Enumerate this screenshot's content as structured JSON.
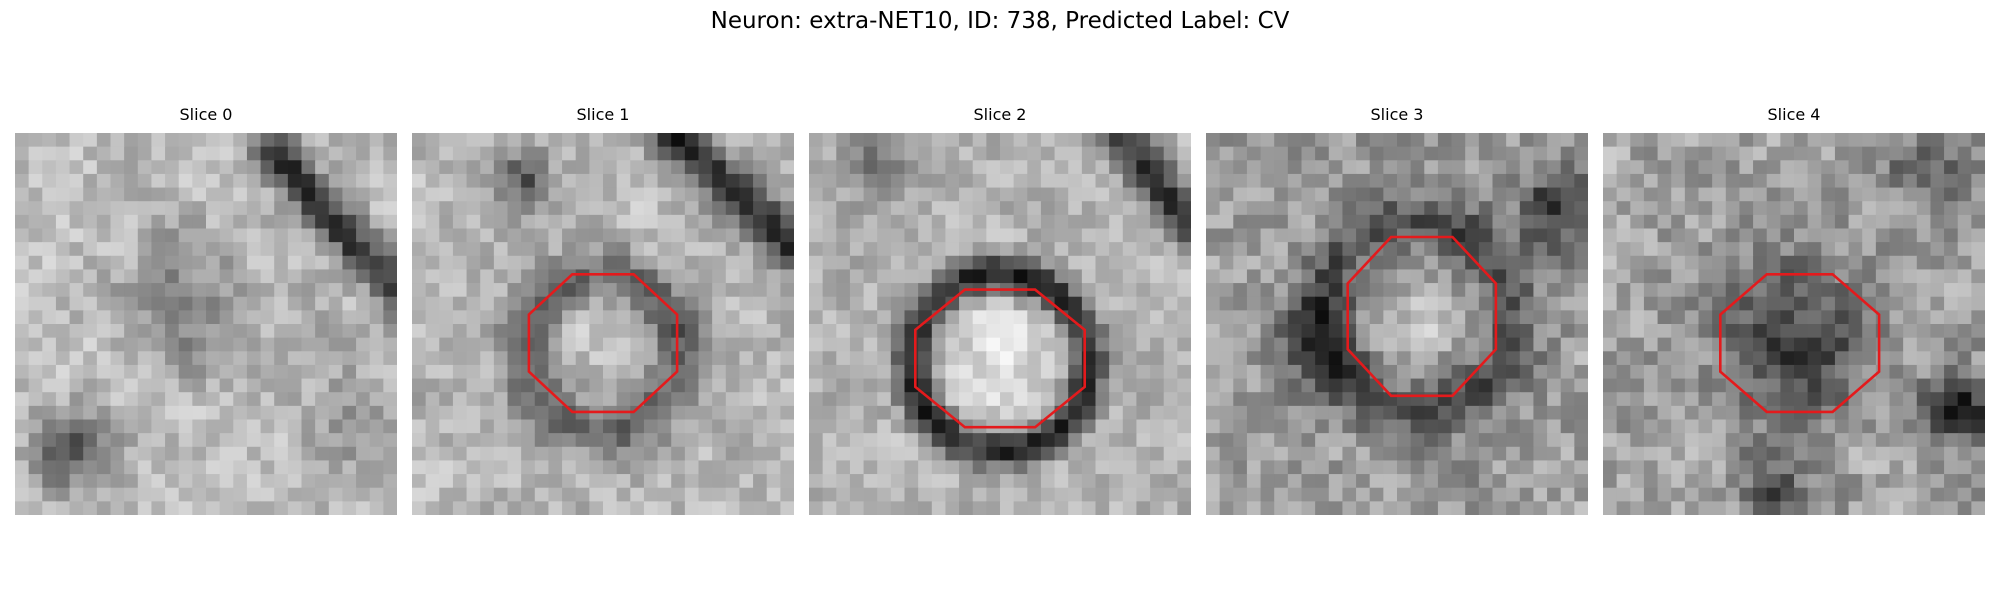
{
  "figure": {
    "title": "Neuron: extra-NET10, ID: 738, Predicted Label: CV"
  },
  "colors": {
    "overlay": "#e41a1c",
    "background": "#ffffff"
  },
  "slices": [
    {
      "label": "Slice 0",
      "has_marker": false
    },
    {
      "label": "Slice 1",
      "has_marker": true
    },
    {
      "label": "Slice 2",
      "has_marker": true
    },
    {
      "label": "Slice 3",
      "has_marker": true
    },
    {
      "label": "Slice 4",
      "has_marker": true
    }
  ]
}
